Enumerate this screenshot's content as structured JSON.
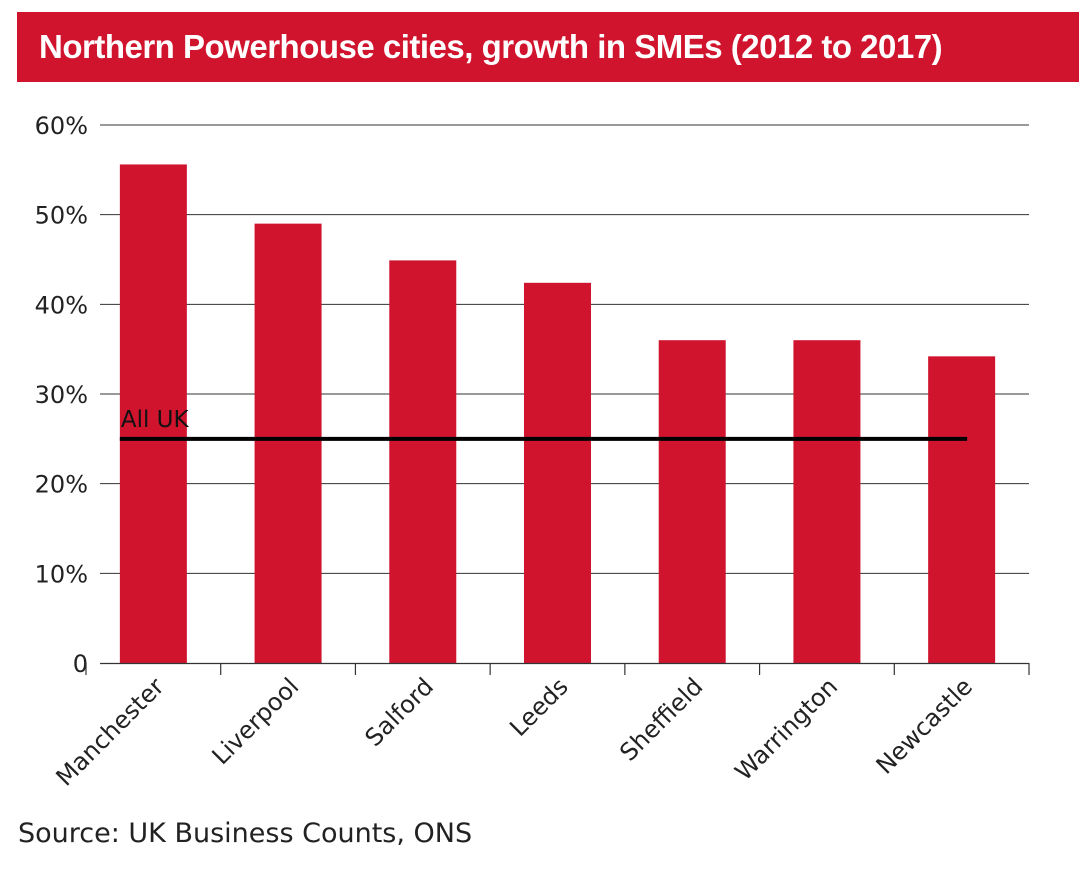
{
  "title": "Northern Powerhouse cities, growth in SMEs (2012 to 2017)",
  "source": "Source: UK Business Counts, ONS",
  "colors": {
    "title_bg": "#d0142e",
    "bar": "#d0142e",
    "reference_line": "#000000",
    "grid": "#333333"
  },
  "chart_data": {
    "type": "bar",
    "title": "Northern Powerhouse cities, growth in SMEs (2012 to 2017)",
    "xlabel": "",
    "ylabel": "",
    "categories": [
      "Manchester",
      "Liverpool",
      "Salford",
      "Leeds",
      "Sheffield",
      "Warrington",
      "Newcastle"
    ],
    "values": [
      55.6,
      49.0,
      44.9,
      42.4,
      36.0,
      36.0,
      34.2
    ],
    "ylim": [
      0,
      60
    ],
    "yticks": [
      0,
      10,
      20,
      30,
      40,
      50,
      60
    ],
    "ytick_labels": [
      "0",
      "10%",
      "20%",
      "30%",
      "40%",
      "50%",
      "60%"
    ],
    "grid": true,
    "reference_line": {
      "label": "All UK",
      "value": 25
    }
  }
}
